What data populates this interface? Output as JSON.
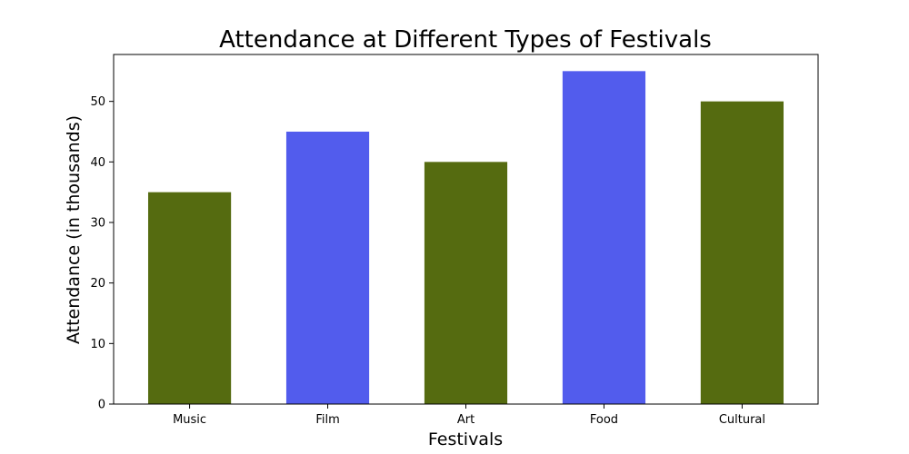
{
  "chart_data": {
    "type": "bar",
    "title": "Attendance at Different Types of Festivals",
    "xlabel": "Festivals",
    "ylabel": "Attendance (in thousands)",
    "categories": [
      "Music",
      "Film",
      "Art",
      "Food",
      "Cultural"
    ],
    "values": [
      35,
      45,
      40,
      55,
      50
    ],
    "bar_colors": [
      "#556b10",
      "#525ced",
      "#556b10",
      "#525ced",
      "#556b10"
    ],
    "ylim": [
      0,
      57.75
    ],
    "yticks": [
      0,
      10,
      20,
      30,
      40,
      50
    ],
    "grid": false,
    "legend": "none"
  }
}
